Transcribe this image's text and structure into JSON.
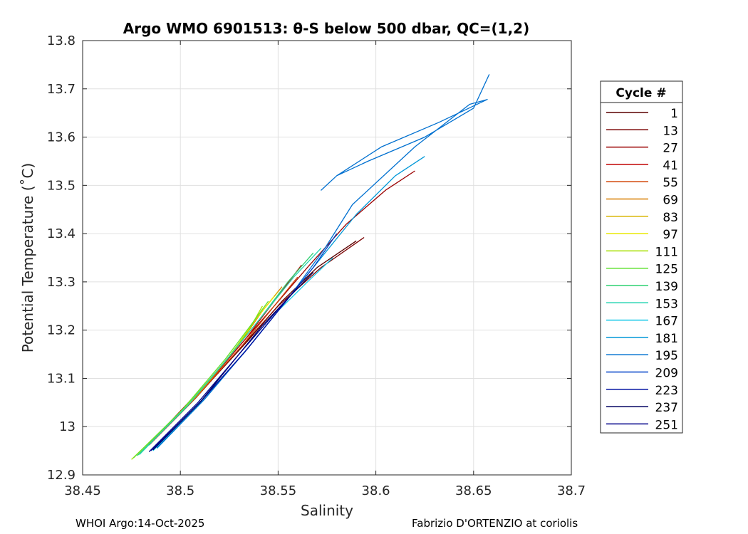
{
  "chart_data": {
    "type": "line",
    "title": "Argo WMO 6901513: θ-S below 500 dbar,  QC=(1,2)",
    "xlabel": "Salinity",
    "ylabel": "Potential Temperature (˚C)",
    "xlim": [
      38.45,
      38.7
    ],
    "ylim": [
      12.9,
      13.8
    ],
    "xticks": [
      "38.45",
      "38.5",
      "38.55",
      "38.6",
      "38.65",
      "38.7"
    ],
    "yticks": [
      "12.9",
      "13",
      "13.1",
      "13.2",
      "13.3",
      "13.4",
      "13.5",
      "13.6",
      "13.7",
      "13.8"
    ],
    "grid": true,
    "legend": {
      "title": "Cycle #",
      "placement": "right-outside"
    },
    "series": [
      {
        "name": "1",
        "color": "#5a0000",
        "points": [
          [
            38.484,
            12.965
          ],
          [
            38.51,
            13.07
          ],
          [
            38.535,
            13.18
          ],
          [
            38.552,
            13.26
          ],
          [
            38.57,
            13.33
          ],
          [
            38.59,
            13.385
          ]
        ]
      },
      {
        "name": "13",
        "color": "#7a0000",
        "points": [
          [
            38.484,
            12.962
          ],
          [
            38.508,
            13.06
          ],
          [
            38.53,
            13.16
          ],
          [
            38.55,
            13.25
          ],
          [
            38.572,
            13.33
          ],
          [
            38.594,
            13.392
          ]
        ]
      },
      {
        "name": "27",
        "color": "#9a0000",
        "points": [
          [
            38.485,
            12.968
          ],
          [
            38.51,
            13.075
          ],
          [
            38.533,
            13.18
          ],
          [
            38.548,
            13.25
          ],
          [
            38.565,
            13.33
          ],
          [
            38.585,
            13.42
          ],
          [
            38.605,
            13.49
          ],
          [
            38.62,
            13.53
          ]
        ]
      },
      {
        "name": "41",
        "color": "#c00000",
        "points": [
          [
            38.486,
            12.97
          ],
          [
            38.512,
            13.08
          ],
          [
            38.534,
            13.185
          ],
          [
            38.548,
            13.26
          ],
          [
            38.562,
            13.335
          ]
        ]
      },
      {
        "name": "55",
        "color": "#d24000",
        "points": [
          [
            38.485,
            12.966
          ],
          [
            38.51,
            13.07
          ],
          [
            38.532,
            13.17
          ],
          [
            38.546,
            13.24
          ],
          [
            38.56,
            13.31
          ]
        ]
      },
      {
        "name": "69",
        "color": "#d87e00",
        "points": [
          [
            38.484,
            12.963
          ],
          [
            38.509,
            13.065
          ],
          [
            38.53,
            13.17
          ],
          [
            38.542,
            13.24
          ],
          [
            38.552,
            13.29
          ]
        ]
      },
      {
        "name": "83",
        "color": "#d8b400",
        "points": [
          [
            38.483,
            12.96
          ],
          [
            38.507,
            13.06
          ],
          [
            38.528,
            13.16
          ],
          [
            38.54,
            13.23
          ],
          [
            38.55,
            13.28
          ]
        ]
      },
      {
        "name": "97",
        "color": "#e8e800",
        "points": [
          [
            38.482,
            12.955
          ],
          [
            38.505,
            13.05
          ],
          [
            38.526,
            13.15
          ],
          [
            38.538,
            13.22
          ],
          [
            38.548,
            13.27
          ]
        ]
      },
      {
        "name": "111",
        "color": "#a6e000",
        "points": [
          [
            38.475,
            12.932
          ],
          [
            38.5,
            13.03
          ],
          [
            38.522,
            13.13
          ],
          [
            38.535,
            13.2
          ],
          [
            38.542,
            13.25
          ]
        ]
      },
      {
        "name": "125",
        "color": "#60e030",
        "points": [
          [
            38.476,
            12.935
          ],
          [
            38.501,
            13.035
          ],
          [
            38.523,
            13.14
          ],
          [
            38.536,
            13.21
          ],
          [
            38.545,
            13.26
          ]
        ]
      },
      {
        "name": "139",
        "color": "#2ed070",
        "points": [
          [
            38.478,
            12.94
          ],
          [
            38.503,
            13.04
          ],
          [
            38.525,
            13.145
          ],
          [
            38.54,
            13.22
          ],
          [
            38.555,
            13.3
          ],
          [
            38.568,
            13.36
          ]
        ]
      },
      {
        "name": "153",
        "color": "#20d4b0",
        "points": [
          [
            38.479,
            12.942
          ],
          [
            38.504,
            13.045
          ],
          [
            38.526,
            13.15
          ],
          [
            38.542,
            13.23
          ],
          [
            38.558,
            13.31
          ],
          [
            38.572,
            13.37
          ]
        ]
      },
      {
        "name": "167",
        "color": "#12c8e8",
        "points": [
          [
            38.486,
            12.95
          ],
          [
            38.51,
            13.05
          ],
          [
            38.532,
            13.15
          ],
          [
            38.55,
            13.24
          ],
          [
            38.565,
            13.3
          ],
          [
            38.578,
            13.35
          ]
        ]
      },
      {
        "name": "181",
        "color": "#0098d8",
        "points": [
          [
            38.488,
            12.955
          ],
          [
            38.512,
            13.055
          ],
          [
            38.534,
            13.16
          ],
          [
            38.552,
            13.25
          ],
          [
            38.57,
            13.34
          ],
          [
            38.59,
            13.44
          ],
          [
            38.61,
            13.52
          ],
          [
            38.625,
            13.56
          ]
        ]
      },
      {
        "name": "195",
        "color": "#0070d0",
        "points": [
          [
            38.488,
            12.956
          ],
          [
            38.513,
            13.06
          ],
          [
            38.536,
            13.17
          ],
          [
            38.556,
            13.27
          ],
          [
            38.574,
            13.37
          ],
          [
            38.588,
            13.46
          ],
          [
            38.62,
            13.58
          ],
          [
            38.648,
            13.668
          ],
          [
            38.657,
            13.678
          ],
          [
            38.632,
            13.63
          ],
          [
            38.603,
            13.58
          ],
          [
            38.58,
            13.52
          ],
          [
            38.572,
            13.49
          ],
          [
            38.58,
            13.52
          ],
          [
            38.596,
            13.55
          ],
          [
            38.625,
            13.6
          ],
          [
            38.65,
            13.66
          ],
          [
            38.658,
            13.73
          ]
        ]
      },
      {
        "name": "209",
        "color": "#0040c8",
        "points": [
          [
            38.486,
            12.952
          ],
          [
            38.511,
            13.055
          ],
          [
            38.534,
            13.16
          ],
          [
            38.553,
            13.255
          ],
          [
            38.568,
            13.33
          ],
          [
            38.58,
            13.4
          ]
        ]
      },
      {
        "name": "223",
        "color": "#0010a0",
        "points": [
          [
            38.485,
            12.95
          ],
          [
            38.51,
            13.05
          ],
          [
            38.533,
            13.155
          ],
          [
            38.55,
            13.24
          ],
          [
            38.562,
            13.3
          ]
        ]
      },
      {
        "name": "237",
        "color": "#000060",
        "points": [
          [
            38.486,
            12.952
          ],
          [
            38.51,
            13.05
          ],
          [
            38.528,
            13.14
          ],
          [
            38.542,
            13.21
          ],
          [
            38.556,
            13.27
          ],
          [
            38.568,
            13.32
          ]
        ]
      },
      {
        "name": "251",
        "color": "#00008a",
        "points": [
          [
            38.484,
            12.948
          ],
          [
            38.509,
            13.05
          ],
          [
            38.53,
            13.15
          ],
          [
            38.545,
            13.22
          ],
          [
            38.558,
            13.28
          ]
        ]
      }
    ]
  },
  "footer": {
    "left": "WHOI Argo:14-Oct-2025",
    "right": "Fabrizio D'ORTENZIO at coriolis"
  }
}
